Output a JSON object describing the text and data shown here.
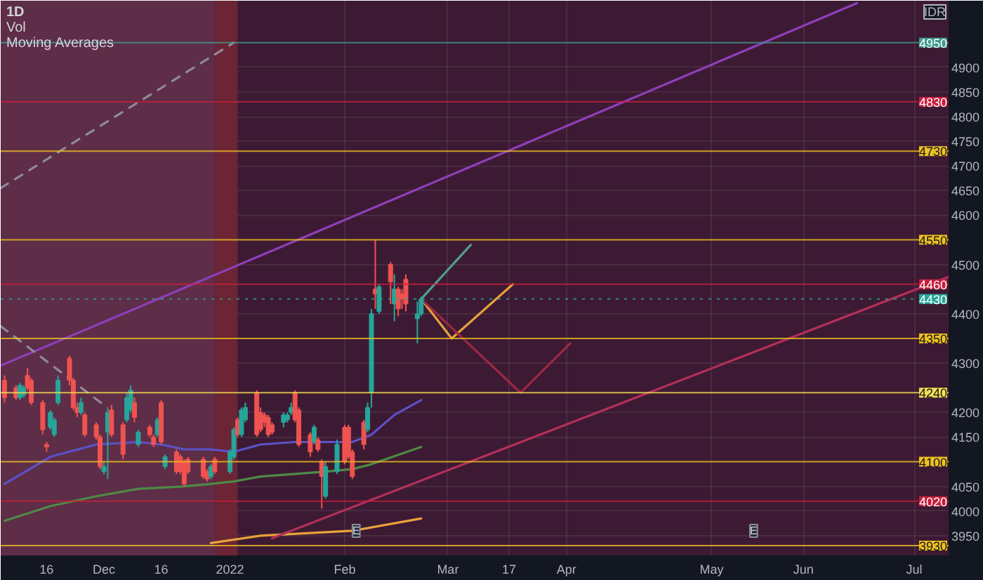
{
  "chart_data": {
    "type": "candlestick",
    "title": "1D",
    "ylabel": "IDR",
    "annotations": [
      "Vol",
      "Moving Averages",
      {
        "text": "E",
        "x": "2022-02-05",
        "y": 3960
      },
      {
        "text": "E",
        "x": "2022-05-20",
        "y": 3960
      }
    ],
    "x": [
      "2021-11-05",
      "2021-11-08",
      "2021-11-09",
      "2021-11-10",
      "2021-11-11",
      "2021-11-12",
      "2021-11-15",
      "2021-11-16",
      "2021-11-17",
      "2021-11-18",
      "2021-11-19",
      "2021-11-22",
      "2021-11-23",
      "2021-11-24",
      "2021-11-25",
      "2021-11-26",
      "2021-11-29",
      "2021-11-30",
      "2021-12-01",
      "2021-12-02",
      "2021-12-03",
      "2021-12-06",
      "2021-12-07",
      "2021-12-08",
      "2021-12-09",
      "2021-12-10",
      "2021-12-13",
      "2021-12-14",
      "2021-12-15",
      "2021-12-16",
      "2021-12-17",
      "2021-12-20",
      "2021-12-21",
      "2021-12-22",
      "2021-12-23",
      "2021-12-27",
      "2021-12-28",
      "2021-12-29",
      "2021-12-30",
      "2022-01-03",
      "2022-01-04",
      "2022-01-05",
      "2022-01-06",
      "2022-01-07",
      "2022-01-10",
      "2022-01-11",
      "2022-01-12",
      "2022-01-13",
      "2022-01-14",
      "2022-01-17",
      "2022-01-18",
      "2022-01-19",
      "2022-01-20",
      "2022-01-21",
      "2022-01-24",
      "2022-01-25",
      "2022-01-26",
      "2022-01-27",
      "2022-01-28",
      "2022-01-31",
      "2022-02-02",
      "2022-02-03",
      "2022-02-04",
      "2022-02-07",
      "2022-02-08",
      "2022-02-09",
      "2022-02-10",
      "2022-02-11",
      "2022-02-14",
      "2022-02-15",
      "2022-02-16",
      "2022-02-17",
      "2022-02-18",
      "2022-02-21",
      "2022-02-22"
    ],
    "ohlc": [
      [
        4265,
        4275,
        4220,
        4230
      ],
      [
        4250,
        4255,
        4225,
        4230
      ],
      [
        4230,
        4260,
        4225,
        4255
      ],
      [
        4235,
        4255,
        4230,
        4250
      ],
      [
        4275,
        4290,
        4245,
        4250
      ],
      [
        4265,
        4270,
        4215,
        4220
      ],
      [
        4220,
        4225,
        4155,
        4165
      ],
      [
        4135,
        4140,
        4120,
        4130
      ],
      [
        4170,
        4205,
        4165,
        4200
      ],
      [
        4155,
        4190,
        4150,
        4185
      ],
      [
        4220,
        4275,
        4215,
        4265
      ],
      [
        4310,
        4315,
        4255,
        4265
      ],
      [
        4265,
        4270,
        4205,
        4210
      ],
      [
        4210,
        4220,
        4190,
        4200
      ],
      [
        4200,
        4230,
        4195,
        4220
      ],
      [
        4195,
        4200,
        4150,
        4155
      ],
      [
        4175,
        4180,
        4145,
        4150
      ],
      [
        4150,
        4155,
        4085,
        4090
      ],
      [
        4080,
        4100,
        4075,
        4090
      ],
      [
        4160,
        4210,
        4065,
        4200
      ],
      [
        4205,
        4215,
        4150,
        4155
      ],
      [
        4175,
        4180,
        4105,
        4115
      ],
      [
        4185,
        4240,
        4180,
        4230
      ],
      [
        4205,
        4255,
        4200,
        4245
      ],
      [
        4220,
        4230,
        4180,
        4190
      ],
      [
        4135,
        4165,
        4130,
        4160
      ],
      [
        4170,
        4175,
        4150,
        4155
      ],
      [
        4150,
        4155,
        4130,
        4135
      ],
      [
        4155,
        4190,
        4150,
        4185
      ],
      [
        4220,
        4225,
        4135,
        4140
      ],
      [
        4090,
        4115,
        4085,
        4110
      ],
      [
        4120,
        4125,
        4075,
        4080
      ],
      [
        4110,
        4115,
        4075,
        4080
      ],
      [
        4100,
        4105,
        4050,
        4055
      ],
      [
        4105,
        4110,
        4075,
        4080
      ],
      [
        4105,
        4110,
        4065,
        4070
      ],
      [
        4080,
        4085,
        4060,
        4065
      ],
      [
        4070,
        4095,
        4065,
        4090
      ],
      [
        4105,
        4110,
        4075,
        4080
      ],
      [
        4080,
        4125,
        4075,
        4120
      ],
      [
        4110,
        4170,
        4105,
        4165
      ],
      [
        4185,
        4190,
        4150,
        4155
      ],
      [
        4155,
        4210,
        4150,
        4205
      ],
      [
        4185,
        4220,
        4180,
        4210
      ],
      [
        4240,
        4245,
        4150,
        4155
      ],
      [
        4200,
        4210,
        4160,
        4165
      ],
      [
        4195,
        4200,
        4170,
        4180
      ],
      [
        4190,
        4195,
        4150,
        4155
      ],
      [
        4175,
        4180,
        4155,
        4160
      ],
      [
        4180,
        4200,
        4170,
        4195
      ],
      [
        4185,
        4200,
        4180,
        4195
      ],
      [
        4200,
        4220,
        4195,
        4210
      ],
      [
        4240,
        4245,
        4180,
        4185
      ],
      [
        4205,
        4210,
        4130,
        4135
      ],
      [
        4155,
        4160,
        4110,
        4120
      ],
      [
        4140,
        4175,
        4135,
        4170
      ],
      [
        4145,
        4150,
        4120,
        4125
      ],
      [
        4100,
        4105,
        4005,
        4070
      ],
      [
        4030,
        4100,
        4025,
        4090
      ],
      [
        4080,
        4145,
        4075,
        4135
      ],
      [
        4170,
        4175,
        4095,
        4100
      ],
      [
        4170,
        4175,
        4105,
        4110
      ],
      [
        4120,
        4125,
        4065,
        4070
      ],
      [
        4180,
        4185,
        4125,
        4135
      ],
      [
        4165,
        4220,
        4160,
        4210
      ],
      [
        4240,
        4410,
        4210,
        4400
      ],
      [
        4450,
        4550,
        4410,
        4440
      ],
      [
        4405,
        4460,
        4400,
        4455
      ],
      [
        4500,
        4505,
        4420,
        4465
      ],
      [
        4420,
        4480,
        4385,
        4450
      ],
      [
        4450,
        4455,
        4395,
        4410
      ],
      [
        4440,
        4450,
        4410,
        4430
      ],
      [
        4470,
        4480,
        4405,
        4420
      ],
      [
        4390,
        4425,
        4340,
        4400
      ],
      [
        4400,
        4435,
        4395,
        4430
      ]
    ],
    "colors": [
      "#ef5350",
      "#ef5350",
      "#26a69a",
      "#26a69a",
      "#ef5350",
      "#ef5350",
      "#ef5350",
      "#ef5350",
      "#26a69a",
      "#26a69a",
      "#26a69a",
      "#ef5350",
      "#ef5350",
      "#ef5350",
      "#26a69a",
      "#ef5350",
      "#ef5350",
      "#ef5350",
      "#26a69a",
      "#26a69a",
      "#ef5350",
      "#ef5350",
      "#26a69a",
      "#26a69a",
      "#ef5350",
      "#26a69a",
      "#ef5350",
      "#ef5350",
      "#26a69a",
      "#ef5350",
      "#26a69a",
      "#ef5350",
      "#ef5350",
      "#ef5350",
      "#ef5350",
      "#ef5350",
      "#ef5350",
      "#26a69a",
      "#ef5350",
      "#26a69a",
      "#26a69a",
      "#ef5350",
      "#26a69a",
      "#26a69a",
      "#ef5350",
      "#ef5350",
      "#ef5350",
      "#ef5350",
      "#ef5350",
      "#26a69a",
      "#26a69a",
      "#26a69a",
      "#ef5350",
      "#ef5350",
      "#ef5350",
      "#26a69a",
      "#ef5350",
      "#ef5350",
      "#26a69a",
      "#26a69a",
      "#ef5350",
      "#ef5350",
      "#ef5350",
      "#ef5350",
      "#26a69a",
      "#26a69a",
      "#ef5350",
      "#26a69a",
      "#ef5350",
      "#26a69a",
      "#ef5350",
      "#ef5350",
      "#ef5350",
      "#26a69a",
      "#26a69a"
    ],
    "series": [
      {
        "type": "line",
        "color": "#5b52c8",
        "x": [
          "2021-11-05",
          "2021-11-17",
          "2021-11-29",
          "2021-12-10",
          "2021-12-16",
          "2021-12-22",
          "2021-12-29",
          "2022-01-04",
          "2022-01-11",
          "2022-01-20",
          "2022-01-28",
          "2022-02-04",
          "2022-02-09",
          "2022-02-15",
          "2022-02-22"
        ],
        "values": [
          4055,
          4110,
          4135,
          4140,
          4135,
          4125,
          4125,
          4120,
          4135,
          4140,
          4140,
          4140,
          4155,
          4195,
          4225
        ]
      },
      {
        "type": "line",
        "color": "#4e8a45",
        "x": [
          "2021-11-05",
          "2021-11-17",
          "2021-11-29",
          "2021-12-10",
          "2021-12-22",
          "2021-12-29",
          "2022-01-04",
          "2022-01-11",
          "2022-01-28",
          "2022-02-04",
          "2022-02-09",
          "2022-02-22"
        ],
        "values": [
          3980,
          4010,
          4030,
          4045,
          4050,
          4055,
          4060,
          4070,
          4080,
          4085,
          4095,
          4130
        ]
      },
      {
        "type": "line",
        "color": "#e9a23b",
        "x": [
          "2021-12-29",
          "2022-01-11",
          "2022-02-04",
          "2022-02-22"
        ],
        "values": [
          3935,
          3950,
          3960,
          3985
        ]
      },
      {
        "type": "line",
        "color": "#8e3fb8",
        "x": [
          "2021-11-04",
          "2022-06-16"
        ],
        "values": [
          4295,
          5030
        ]
      },
      {
        "type": "line",
        "color": "#b3305a",
        "x": [
          "2022-01-14",
          "2022-07-10"
        ],
        "values": [
          3945,
          4475
        ]
      },
      {
        "type": "line",
        "color": "#8f8a99",
        "line_style": "dashed",
        "x": [
          "2021-11-04",
          "2022-01-04"
        ],
        "values": [
          4655,
          4950
        ]
      },
      {
        "type": "line",
        "color": "#8f8a99",
        "line_style": "dashed",
        "x": [
          "2021-11-04",
          "2021-12-01"
        ],
        "values": [
          4375,
          4215
        ]
      },
      {
        "type": "line",
        "color": "#4f9e8c",
        "x": [
          "2022-02-22",
          "2022-03-07"
        ],
        "values": [
          4430,
          4540
        ]
      },
      {
        "type": "line",
        "color": "#e5a03a",
        "x": [
          "2022-02-22",
          "2022-03-02",
          "2022-03-18"
        ],
        "values": [
          4430,
          4350,
          4460
        ]
      },
      {
        "type": "line",
        "color": "#9c2845",
        "x": [
          "2022-02-22",
          "2022-03-20",
          "2022-04-02"
        ],
        "values": [
          4430,
          4240,
          4340
        ]
      }
    ],
    "ref_lines": [
      {
        "axis": "y",
        "value": 4950,
        "label": "4950",
        "color": "#3e9b8e"
      },
      {
        "axis": "y",
        "value": 4830,
        "label": "4830",
        "color": "#c81e3c"
      },
      {
        "axis": "y",
        "value": 4730,
        "label": "4730",
        "color": "#f0c020"
      },
      {
        "axis": "y",
        "value": 4550,
        "label": "4550",
        "color": "#f0c020"
      },
      {
        "axis": "y",
        "value": 4460,
        "label": "4460",
        "color": "#c81e3c"
      },
      {
        "axis": "y",
        "value": 4430,
        "label": "4430",
        "color": "#26a69a",
        "line_style": "dotted"
      },
      {
        "axis": "y",
        "value": 4350,
        "label": "4350",
        "color": "#f0c020"
      },
      {
        "axis": "y",
        "value": 4240,
        "label": "4240",
        "color": "#f5e050"
      },
      {
        "axis": "y",
        "value": 4100,
        "label": "4100",
        "color": "#f0c020"
      },
      {
        "axis": "y",
        "value": 4020,
        "label": "4020",
        "color": "#c81e3c"
      },
      {
        "axis": "y",
        "value": 3930,
        "label": "3930",
        "color": "#f0c020"
      }
    ],
    "bands": [
      {
        "axis": "x",
        "from": "2021-11-04",
        "to": "2021-12-30",
        "color": "#5e2d48"
      },
      {
        "axis": "x",
        "from": "2021-12-30",
        "to": "2022-01-05",
        "color": "#6b2535"
      }
    ],
    "xlim": [
      "2021-11-04",
      "2022-07-10"
    ],
    "xticks": [
      {
        "value": "2021-11-16",
        "label": "16"
      },
      {
        "value": "2021-12-01",
        "label": "Dec"
      },
      {
        "value": "2021-12-16",
        "label": "16"
      },
      {
        "value": "2022-01-03",
        "label": "2022"
      },
      {
        "value": "2022-02-02",
        "label": "Feb"
      },
      {
        "value": "2022-03-01",
        "label": "Mar"
      },
      {
        "value": "2022-03-17",
        "label": "17"
      },
      {
        "value": "2022-04-01",
        "label": "Apr"
      },
      {
        "value": "2022-05-09",
        "label": "May"
      },
      {
        "value": "2022-06-02",
        "label": "Jun"
      },
      {
        "value": "2022-07-01",
        "label": "Jul"
      }
    ],
    "ylim": [
      3910,
      5035
    ],
    "yticks": [
      3950,
      4000,
      4050,
      4150,
      4200,
      4300,
      4400,
      4500,
      4600,
      4650,
      4700,
      4750,
      4800,
      4850,
      4900
    ],
    "grid": true
  }
}
